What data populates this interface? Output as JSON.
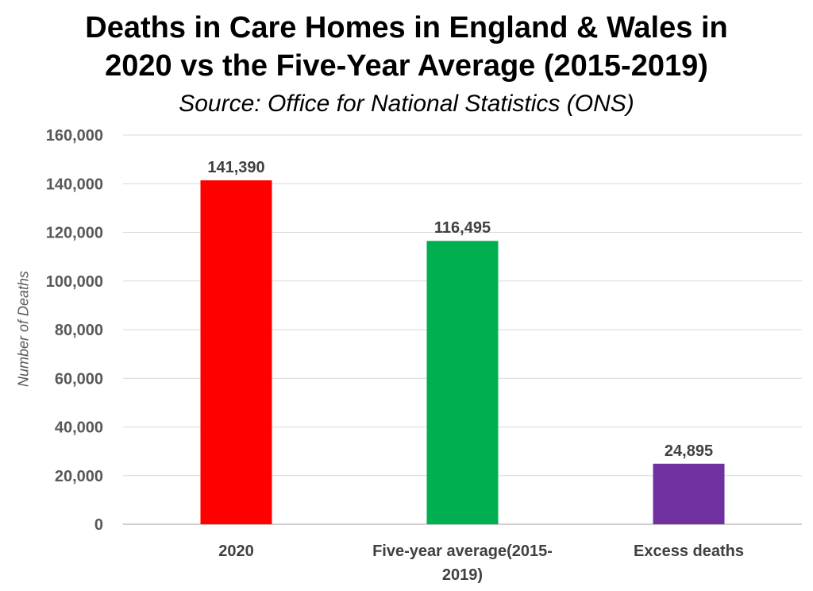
{
  "chart_data": {
    "type": "bar",
    "title_lines": [
      "Deaths in Care Homes in England & Wales in",
      "2020 vs the Five-Year Average (2015-2019)"
    ],
    "subtitle": "Source: Office for National Statistics (ONS)",
    "xlabel": "",
    "ylabel": "Number of Deaths",
    "categories": [
      [
        "2020"
      ],
      [
        "Five-year average(2015-",
        "2019)"
      ],
      [
        "Excess deaths"
      ]
    ],
    "values": [
      141390,
      116495,
      24895
    ],
    "data_labels": [
      "141,390",
      "116,495",
      "24,895"
    ],
    "colors": [
      "#ff0000",
      "#00b050",
      "#7030a0"
    ],
    "ylim": [
      0,
      160000
    ],
    "yticks": [
      0,
      20000,
      40000,
      60000,
      80000,
      100000,
      120000,
      140000,
      160000
    ],
    "ytick_labels": [
      "0",
      "20,000",
      "40,000",
      "60,000",
      "80,000",
      "100,000",
      "120,000",
      "140,000",
      "160,000"
    ],
    "grid": true,
    "legend": "none"
  }
}
